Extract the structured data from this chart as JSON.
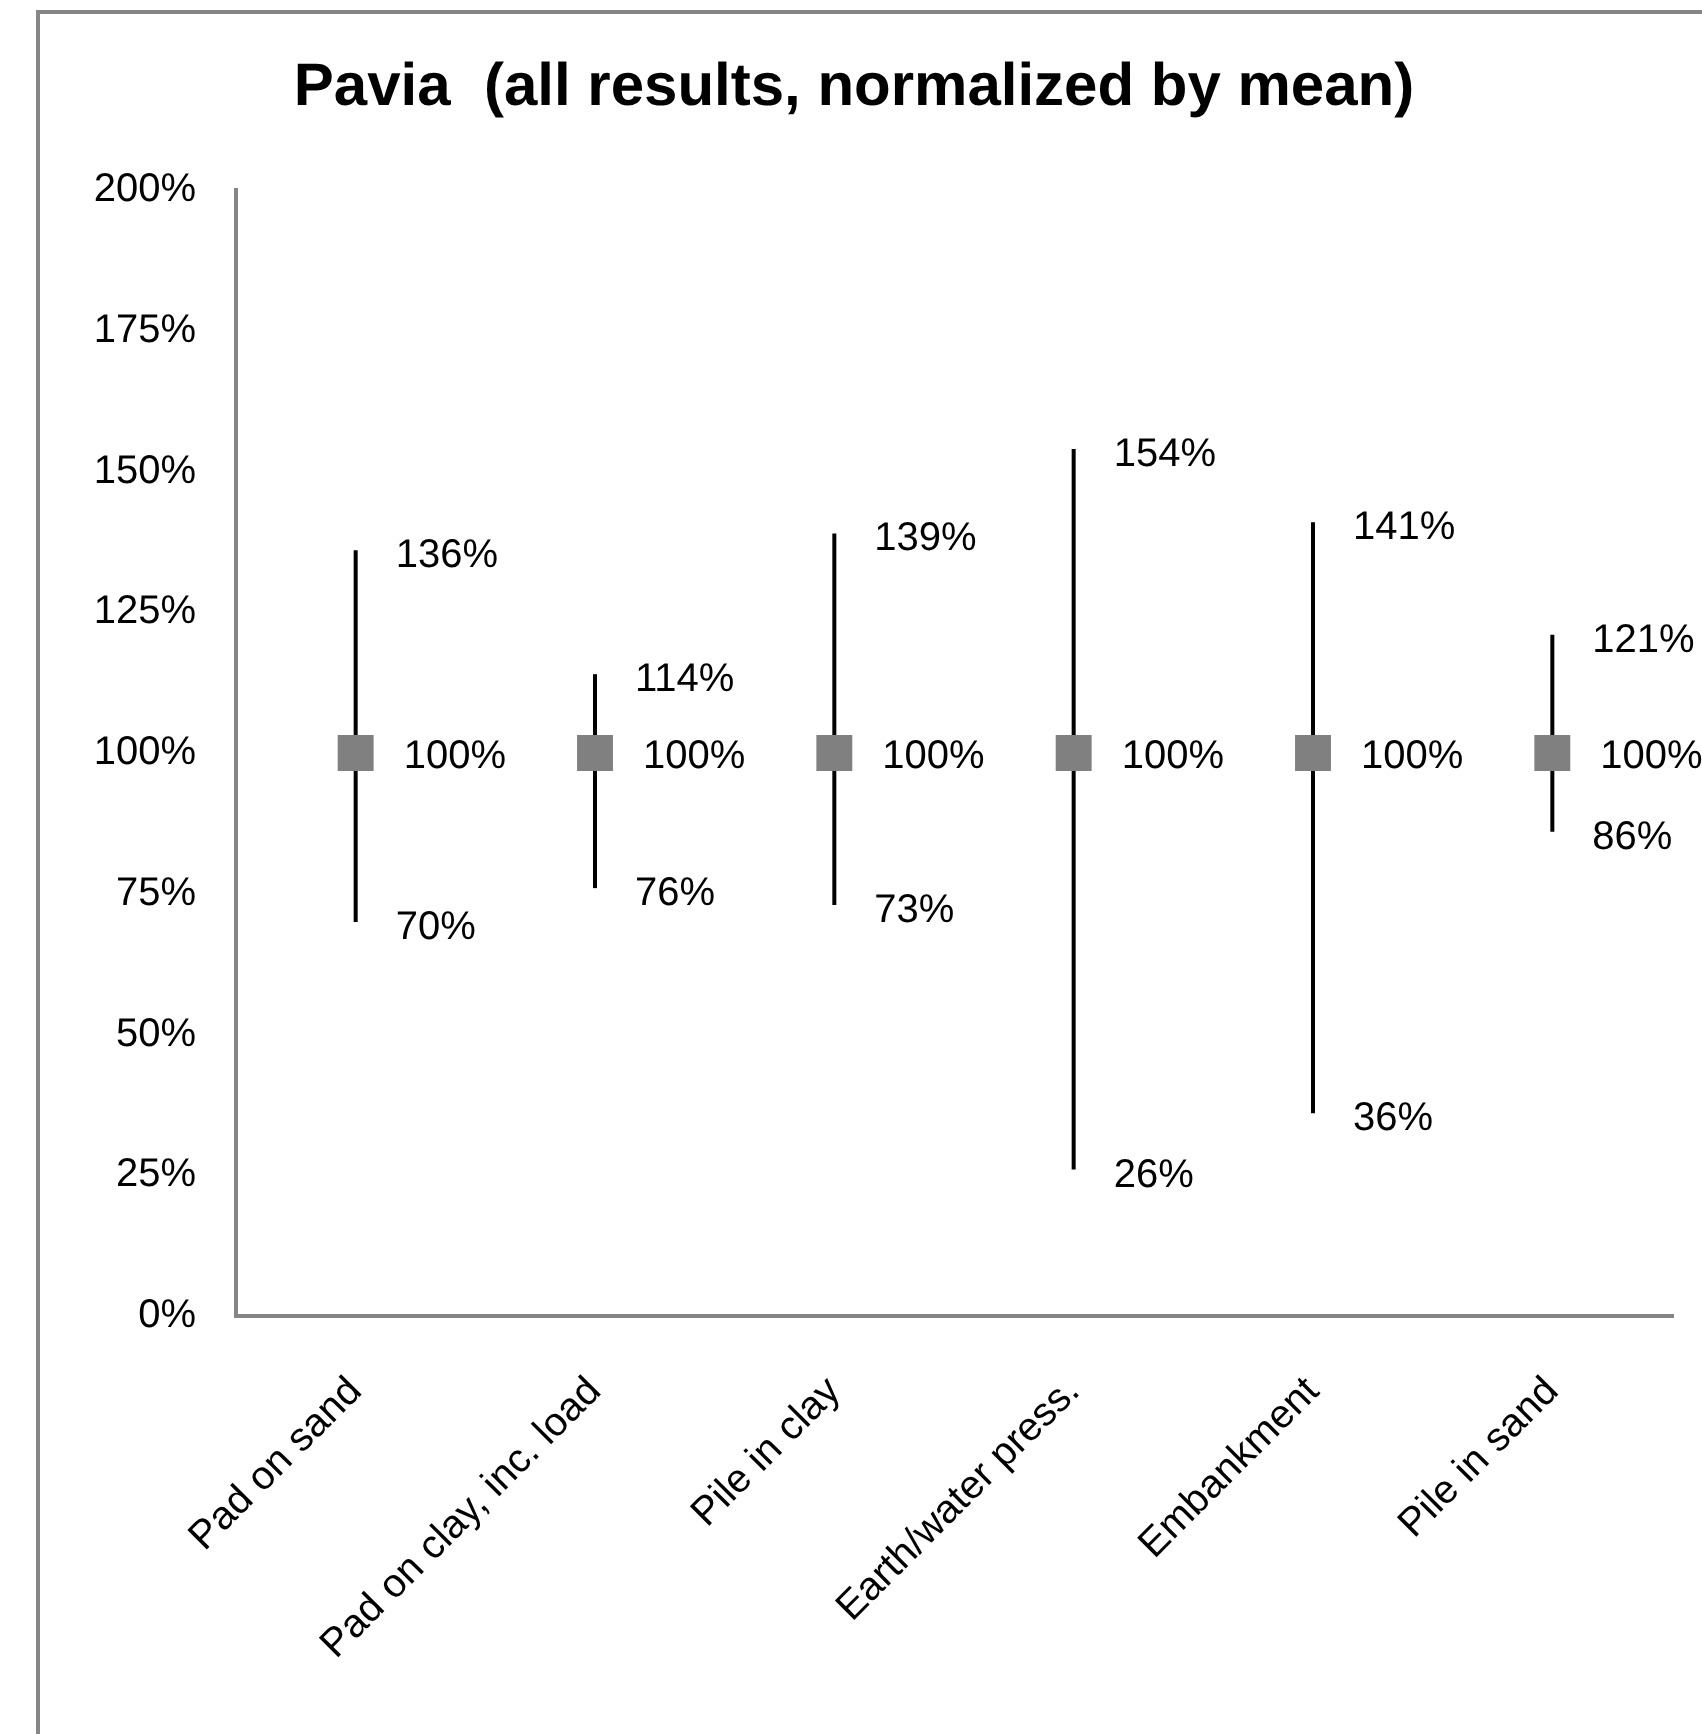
{
  "chart_data": {
    "type": "scatter",
    "title": "Pavia  (all results, normalized by mean)",
    "categories": [
      "Pad on sand",
      "Pad on clay, inc. load",
      "Pile in clay",
      "Earth/water press.",
      "Embankment",
      "Pile in sand"
    ],
    "values": [
      100,
      100,
      100,
      100,
      100,
      100
    ],
    "color": "#808080",
    "errors": [
      [
        70,
        136
      ],
      [
        76,
        114
      ],
      [
        73,
        139
      ],
      [
        26,
        154
      ],
      [
        36,
        141
      ],
      [
        86,
        121
      ]
    ],
    "value_labels": [
      "100%",
      "100%",
      "100%",
      "100%",
      "100%",
      "100%"
    ],
    "annotations": [
      {
        "text": "136%",
        "x": "Pad on sand",
        "y": 136
      },
      {
        "text": "70%",
        "x": "Pad on sand",
        "y": 70
      },
      {
        "text": "114%",
        "x": "Pad on clay, inc. load",
        "y": 114
      },
      {
        "text": "76%",
        "x": "Pad on clay, inc. load",
        "y": 76
      },
      {
        "text": "139%",
        "x": "Pile in clay",
        "y": 139
      },
      {
        "text": "73%",
        "x": "Pile in clay",
        "y": 73
      },
      {
        "text": "154%",
        "x": "Earth/water press.",
        "y": 154
      },
      {
        "text": "26%",
        "x": "Earth/water press.",
        "y": 26
      },
      {
        "text": "141%",
        "x": "Embankment",
        "y": 141
      },
      {
        "text": "36%",
        "x": "Embankment",
        "y": 36
      },
      {
        "text": "121%",
        "x": "Pile in sand",
        "y": 121
      },
      {
        "text": "86%",
        "x": "Pile in sand",
        "y": 86
      }
    ],
    "ylim": [
      0,
      200
    ],
    "yticks": [
      {
        "value": 0,
        "label": "0%"
      },
      {
        "value": 25,
        "label": "25%"
      },
      {
        "value": 50,
        "label": "50%"
      },
      {
        "value": 75,
        "label": "75%"
      },
      {
        "value": 100,
        "label": "100%"
      },
      {
        "value": 125,
        "label": "125%"
      },
      {
        "value": 150,
        "label": "150%"
      },
      {
        "value": 175,
        "label": "175%"
      },
      {
        "value": 200,
        "label": "200%"
      }
    ],
    "marker": "square",
    "grid": false,
    "legend": false
  }
}
